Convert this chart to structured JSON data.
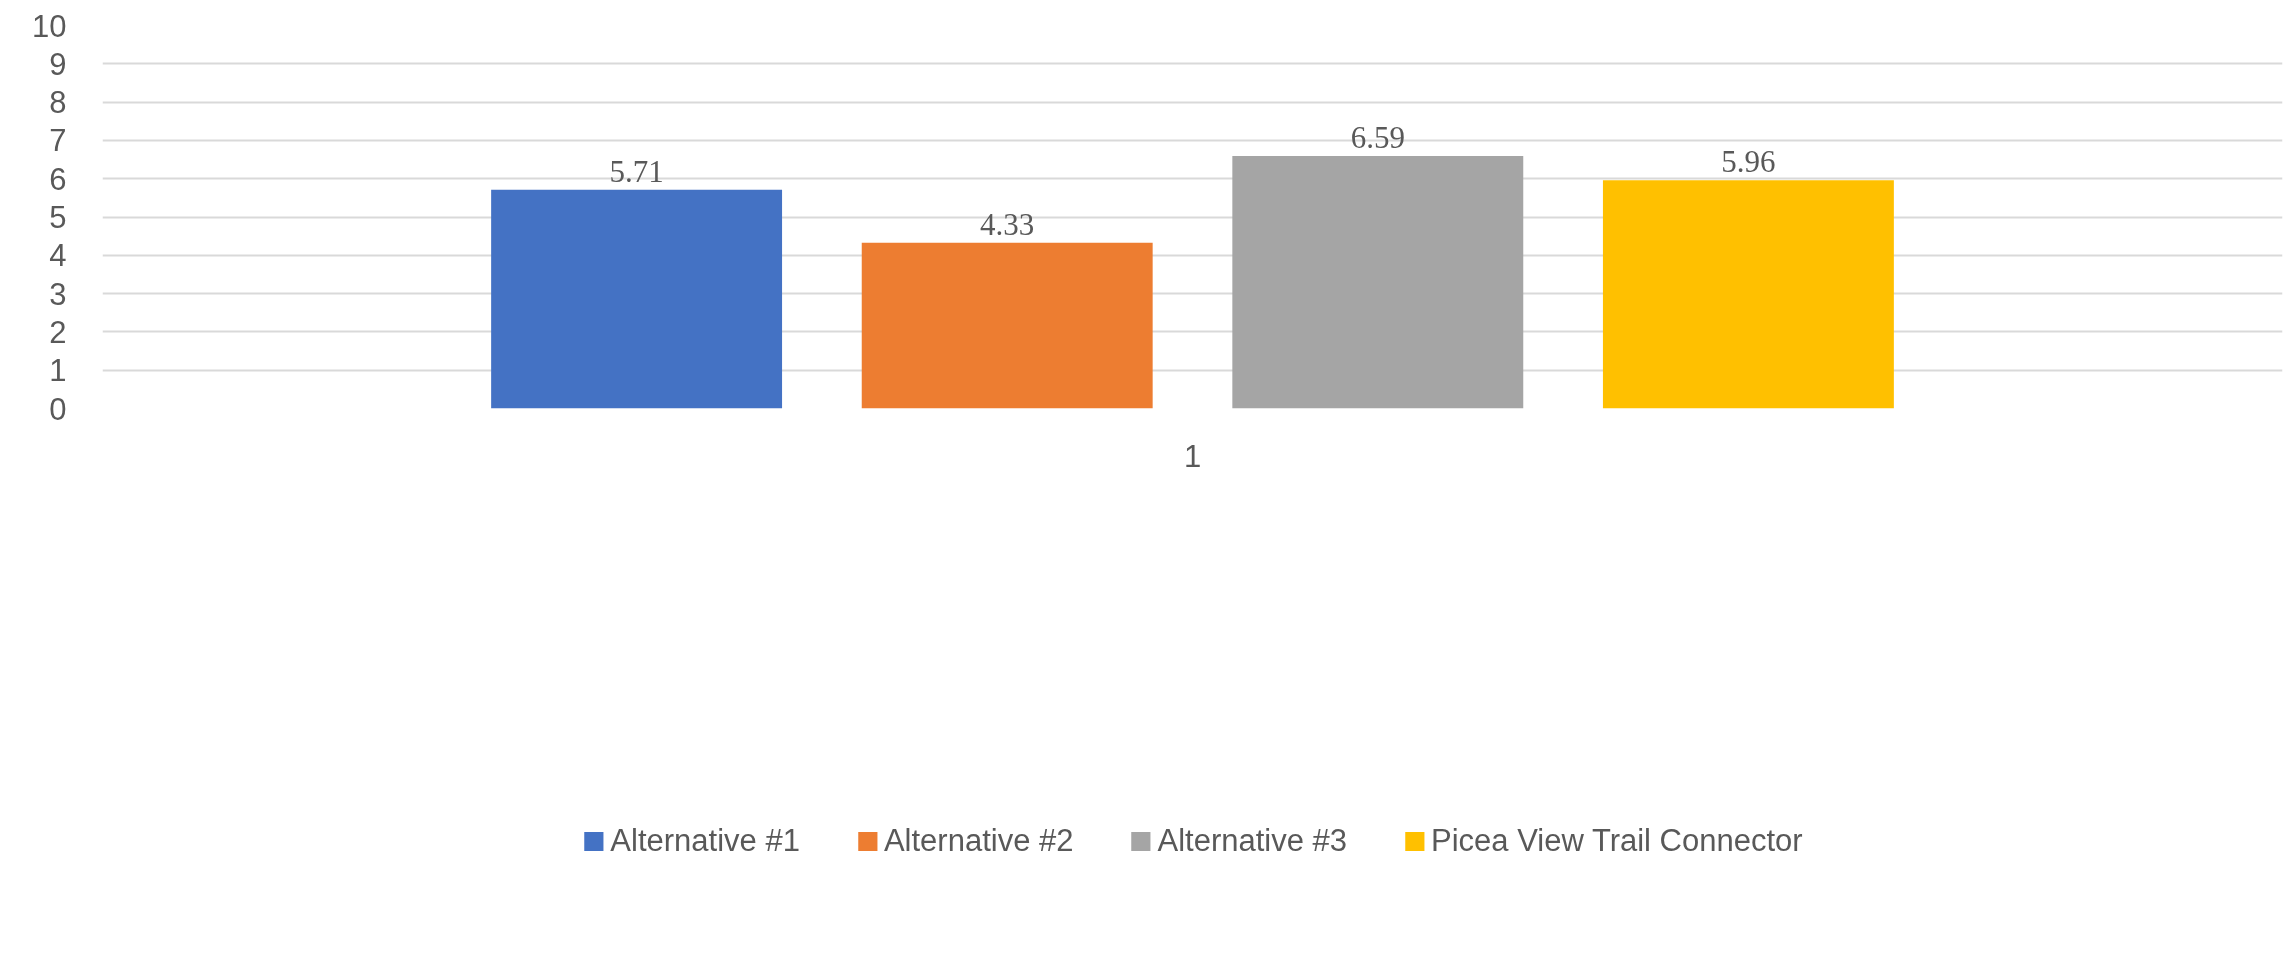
{
  "chart_data": {
    "type": "bar",
    "categories": [
      "1"
    ],
    "series": [
      {
        "name": "Alternative #1",
        "color": "#4472c4",
        "values": [
          5.71
        ]
      },
      {
        "name": "Alternative #2",
        "color": "#ed7d31",
        "values": [
          4.33
        ]
      },
      {
        "name": "Alternative #3",
        "color": "#a5a5a5",
        "values": [
          6.59
        ]
      },
      {
        "name": "Picea View Trail Connector",
        "color": "#ffc000",
        "values": [
          5.96
        ]
      }
    ],
    "ylim": [
      0,
      10
    ],
    "yticks": [
      0,
      1,
      2,
      3,
      4,
      5,
      6,
      7,
      8,
      9,
      10
    ],
    "grid": "y",
    "legend": "bottom",
    "data_labels": true
  }
}
